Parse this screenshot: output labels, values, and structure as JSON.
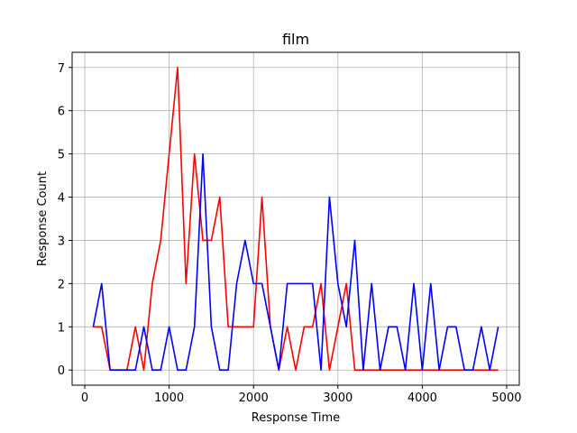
{
  "chart_data": {
    "type": "line",
    "title": "film",
    "xlabel": "Response Time",
    "ylabel": "Response Count",
    "xlim": [
      -150,
      5150
    ],
    "ylim": [
      -0.35,
      7.35
    ],
    "xticks": [
      0,
      1000,
      2000,
      3000,
      4000,
      5000
    ],
    "yticks": [
      0,
      1,
      2,
      3,
      4,
      5,
      6,
      7
    ],
    "grid": true,
    "x": [
      100,
      200,
      300,
      400,
      500,
      600,
      700,
      800,
      900,
      1000,
      1100,
      1200,
      1300,
      1400,
      1500,
      1600,
      1700,
      1800,
      1900,
      2000,
      2100,
      2200,
      2300,
      2400,
      2500,
      2600,
      2700,
      2800,
      2900,
      3000,
      3100,
      3200,
      3300,
      3400,
      3500,
      3600,
      3700,
      3800,
      3900,
      4000,
      4100,
      4200,
      4300,
      4400,
      4500,
      4600,
      4700,
      4800,
      4900
    ],
    "series": [
      {
        "color": "#ff0000",
        "values": [
          1,
          1,
          0,
          0,
          0,
          1,
          0,
          2,
          3,
          5,
          7,
          2,
          5,
          3,
          3,
          4,
          1,
          1,
          1,
          1,
          4,
          1,
          0,
          1,
          0,
          1,
          1,
          2,
          0,
          1,
          2,
          0,
          0,
          0,
          0,
          0,
          0,
          0,
          0,
          0,
          0,
          0,
          0,
          0,
          0,
          0,
          0,
          0,
          0
        ]
      },
      {
        "color": "#0000ff",
        "values": [
          1,
          2,
          0,
          0,
          0,
          0,
          1,
          0,
          0,
          1,
          0,
          0,
          1,
          5,
          1,
          0,
          0,
          2,
          3,
          2,
          2,
          1,
          0,
          2,
          2,
          2,
          2,
          0,
          4,
          2,
          1,
          3,
          0,
          2,
          0,
          1,
          1,
          0,
          2,
          0,
          2,
          0,
          1,
          1,
          0,
          0,
          1,
          0,
          1
        ]
      }
    ]
  }
}
